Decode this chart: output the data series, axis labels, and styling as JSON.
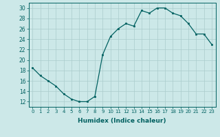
{
  "x": [
    0,
    1,
    2,
    3,
    4,
    5,
    6,
    7,
    8,
    9,
    10,
    11,
    12,
    13,
    14,
    15,
    16,
    17,
    18,
    19,
    20,
    21,
    22,
    23
  ],
  "y": [
    18.5,
    17,
    16,
    15,
    13.5,
    12.5,
    12,
    12,
    13,
    21,
    24.5,
    26,
    27,
    26.5,
    29.5,
    29,
    30,
    30,
    29,
    28.5,
    27,
    25,
    25,
    23
  ],
  "line_color": "#006060",
  "marker_color": "#006060",
  "bg_color": "#cce8e8",
  "grid_color": "#aacccc",
  "xlabel": "Humidex (Indice chaleur)",
  "ylim": [
    11,
    31
  ],
  "yticks": [
    12,
    14,
    16,
    18,
    20,
    22,
    24,
    26,
    28,
    30
  ],
  "xticks": [
    0,
    1,
    2,
    3,
    4,
    5,
    6,
    7,
    8,
    9,
    10,
    11,
    12,
    13,
    14,
    15,
    16,
    17,
    18,
    19,
    20,
    21,
    22,
    23
  ]
}
